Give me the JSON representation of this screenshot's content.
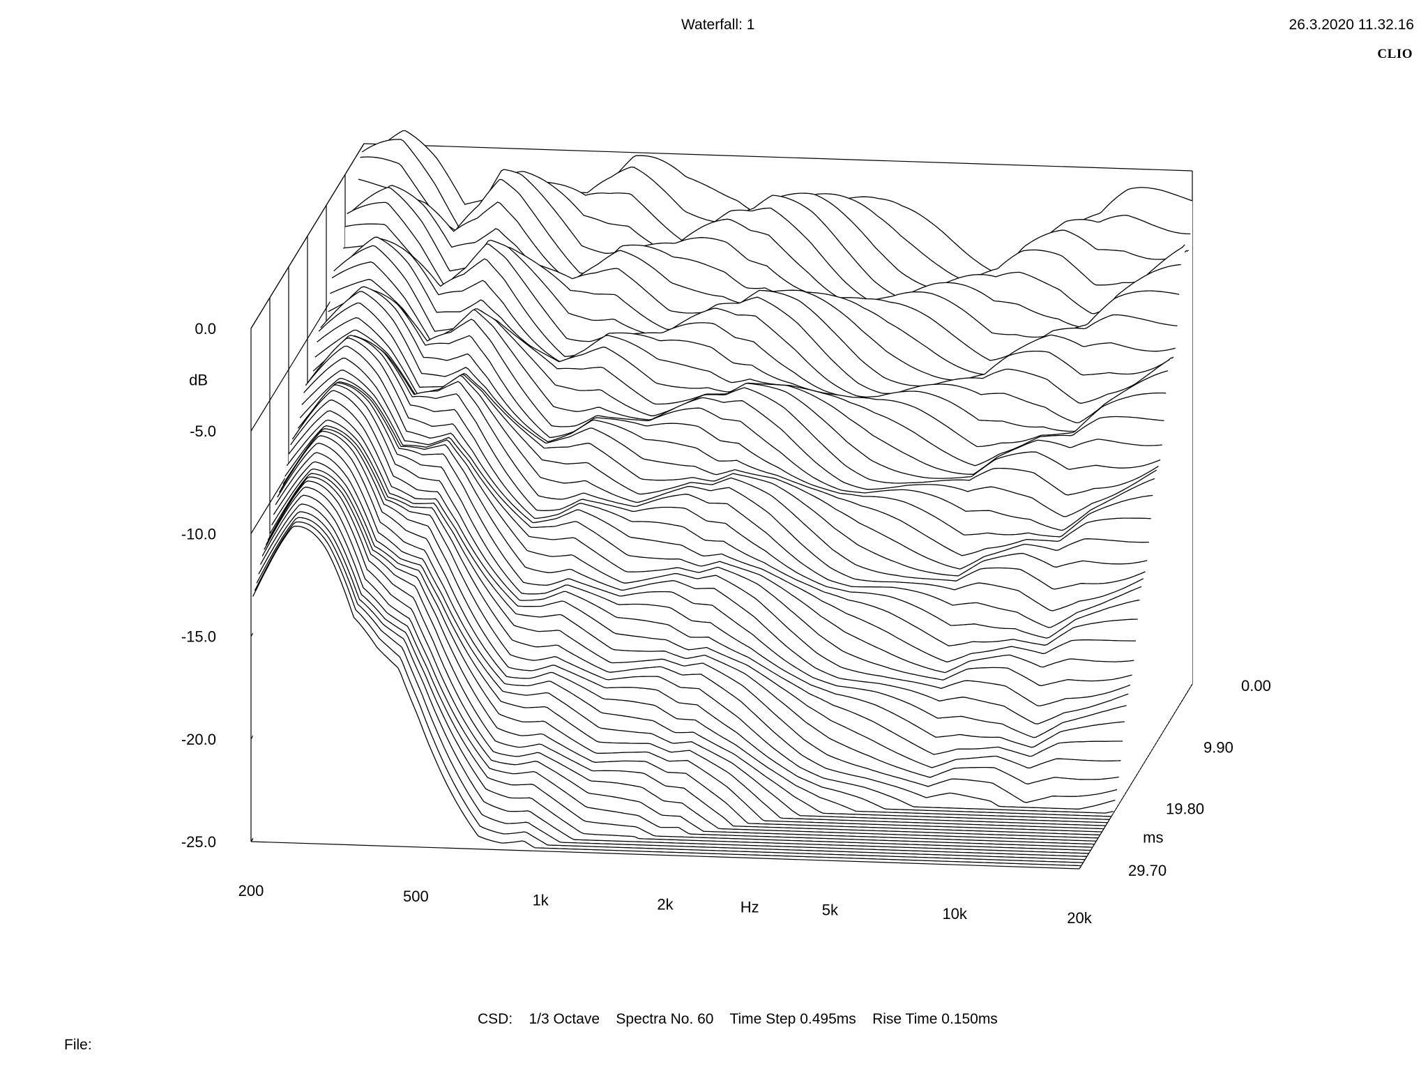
{
  "header": {
    "title": "Waterfall: 1",
    "timestamp": "26.3.2020 11.32.16",
    "brand": "CLIO"
  },
  "footer": {
    "settings": "CSD:    1/3 Octave    Spectra No. 60    Time Step 0.495ms    Rise Time 0.150ms",
    "file_label": "File:"
  },
  "chart_data": {
    "type": "waterfall",
    "title": "Waterfall: 1",
    "y_axis": {
      "label": "dB",
      "ticks": [
        "0.0",
        "-5.0",
        "-10.0",
        "-15.0",
        "-20.0",
        "-25.0"
      ],
      "range": [
        -25,
        0
      ]
    },
    "x_axis": {
      "label": "Hz",
      "scale": "log",
      "ticks": [
        "200",
        "500",
        "1k",
        "2k",
        "5k",
        "10k",
        "20k"
      ],
      "range": [
        200,
        20000
      ]
    },
    "z_axis": {
      "label": "ms",
      "ticks": [
        "0.00",
        "9.90",
        "19.80",
        "29.70"
      ],
      "range": [
        0,
        29.7
      ]
    },
    "spectra_count": 60,
    "time_step_ms": 0.495,
    "rise_time_ms": 0.15,
    "smoothing": "1/3 Octave",
    "line_color": "#000000",
    "first_spectrum": {
      "freq_hz": [
        200,
        250,
        300,
        350,
        400,
        450,
        500,
        600,
        700,
        800,
        900,
        1000,
        1200,
        1400,
        1600,
        1800,
        2000,
        2500,
        3000,
        3500,
        4000,
        5000,
        6000,
        7000,
        8000,
        9000,
        10000,
        12000,
        14000,
        16000,
        18000,
        20000
      ],
      "level_db": [
        -1.2,
        -0.6,
        -1.8,
        -3.2,
        -2.0,
        -0.4,
        -0.6,
        -1.6,
        -2.4,
        -2.0,
        -1.4,
        -1.6,
        -2.0,
        -1.6,
        -1.3,
        -1.5,
        -1.2,
        -1.8,
        -2.6,
        -3.2,
        -3.5,
        -3.6,
        -3.8,
        -4.0,
        -3.4,
        -3.2,
        -3.0,
        -3.3,
        -2.4,
        -2.0,
        -1.6,
        -1.2
      ]
    },
    "decay_envelope_db_at_ms": {
      "time_ms": [
        0.0,
        5.0,
        10.0,
        15.0,
        20.0,
        29.7
      ],
      "level_db": [
        -1.5,
        -6.0,
        -10.5,
        -14.5,
        -18.5,
        -25.0
      ]
    }
  }
}
